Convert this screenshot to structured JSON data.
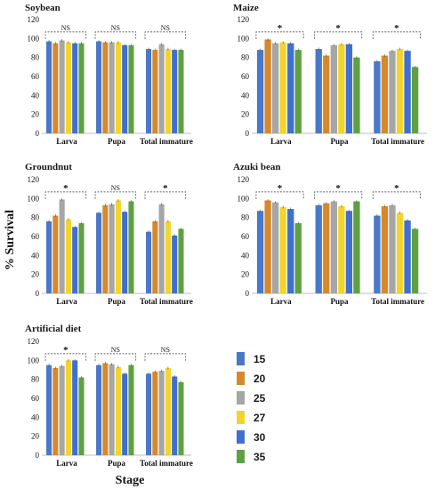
{
  "figure": {
    "ylabel": "% Survival",
    "xlabel": "Stage"
  },
  "legend": [
    {
      "label": "15",
      "color": "#4a78c9"
    },
    {
      "label": "20",
      "color": "#d6892c"
    },
    {
      "label": "25",
      "color": "#a6a6a6"
    },
    {
      "label": "27",
      "color": "#f2d42b"
    },
    {
      "label": "30",
      "color": "#3f6fd0"
    },
    {
      "label": "35",
      "color": "#5fa043"
    }
  ],
  "chart_data": [
    {
      "type": "bar",
      "title": "Soybean",
      "categories": [
        "Larva",
        "Pupa",
        "Total immature"
      ],
      "ylim": [
        0,
        120
      ],
      "yticks": [
        0,
        20,
        40,
        60,
        80,
        100,
        120
      ],
      "series": [
        {
          "name": "15",
          "values": [
            97,
            97,
            89
          ]
        },
        {
          "name": "20",
          "values": [
            95,
            96,
            88
          ]
        },
        {
          "name": "25",
          "values": [
            98,
            96,
            94
          ]
        },
        {
          "name": "27",
          "values": [
            96,
            96,
            89
          ]
        },
        {
          "name": "30",
          "values": [
            95,
            93,
            88
          ]
        },
        {
          "name": "35",
          "values": [
            95,
            93,
            88
          ]
        }
      ],
      "significance": [
        "NS",
        "NS",
        "NS"
      ]
    },
    {
      "type": "bar",
      "title": "Maize",
      "categories": [
        "Larva",
        "Pupa",
        "Total immature"
      ],
      "ylim": [
        0,
        120
      ],
      "yticks": [
        0,
        20,
        40,
        60,
        80,
        100,
        120
      ],
      "series": [
        {
          "name": "15",
          "values": [
            88,
            89,
            76
          ]
        },
        {
          "name": "20",
          "values": [
            99,
            82,
            82
          ]
        },
        {
          "name": "25",
          "values": [
            95,
            93,
            87
          ]
        },
        {
          "name": "27",
          "values": [
            96,
            94,
            89
          ]
        },
        {
          "name": "30",
          "values": [
            95,
            94,
            87
          ]
        },
        {
          "name": "35",
          "values": [
            88,
            80,
            70
          ]
        }
      ],
      "significance": [
        "*",
        "*",
        "*"
      ]
    },
    {
      "type": "bar",
      "title": "Groundnut",
      "categories": [
        "Larva",
        "Pupa",
        "Total immature"
      ],
      "ylim": [
        0,
        120
      ],
      "yticks": [
        0,
        20,
        40,
        60,
        80,
        100,
        120
      ],
      "series": [
        {
          "name": "15",
          "values": [
            76,
            85,
            65
          ]
        },
        {
          "name": "20",
          "values": [
            82,
            93,
            76
          ]
        },
        {
          "name": "25",
          "values": [
            99,
            94,
            94
          ]
        },
        {
          "name": "27",
          "values": [
            78,
            98,
            76
          ]
        },
        {
          "name": "30",
          "values": [
            70,
            86,
            61
          ]
        },
        {
          "name": "35",
          "values": [
            74,
            97,
            68
          ]
        }
      ],
      "significance": [
        "*",
        "NS",
        "*"
      ]
    },
    {
      "type": "bar",
      "title": "Azuki bean",
      "categories": [
        "Larva",
        "Pupa",
        "Total immature"
      ],
      "ylim": [
        0,
        120
      ],
      "yticks": [
        0,
        20,
        40,
        60,
        80,
        100,
        120
      ],
      "series": [
        {
          "name": "15",
          "values": [
            87,
            93,
            82
          ]
        },
        {
          "name": "20",
          "values": [
            98,
            95,
            92
          ]
        },
        {
          "name": "25",
          "values": [
            96,
            97,
            93
          ]
        },
        {
          "name": "27",
          "values": [
            91,
            92,
            85
          ]
        },
        {
          "name": "30",
          "values": [
            89,
            87,
            77
          ]
        },
        {
          "name": "35",
          "values": [
            74,
            97,
            68
          ]
        }
      ],
      "significance": [
        "*",
        "*",
        "*"
      ]
    },
    {
      "type": "bar",
      "title": "Artificial diet",
      "categories": [
        "Larva",
        "Pupa",
        "Total immature"
      ],
      "ylim": [
        0,
        120
      ],
      "yticks": [
        0,
        20,
        40,
        60,
        80,
        100,
        120
      ],
      "series": [
        {
          "name": "15",
          "values": [
            95,
            95,
            86
          ]
        },
        {
          "name": "20",
          "values": [
            92,
            97,
            88
          ]
        },
        {
          "name": "25",
          "values": [
            94,
            96,
            89
          ]
        },
        {
          "name": "27",
          "values": [
            100,
            93,
            92
          ]
        },
        {
          "name": "30",
          "values": [
            100,
            86,
            83
          ]
        },
        {
          "name": "35",
          "values": [
            82,
            95,
            77
          ]
        }
      ],
      "significance": [
        "*",
        "NS",
        "NS"
      ]
    }
  ]
}
